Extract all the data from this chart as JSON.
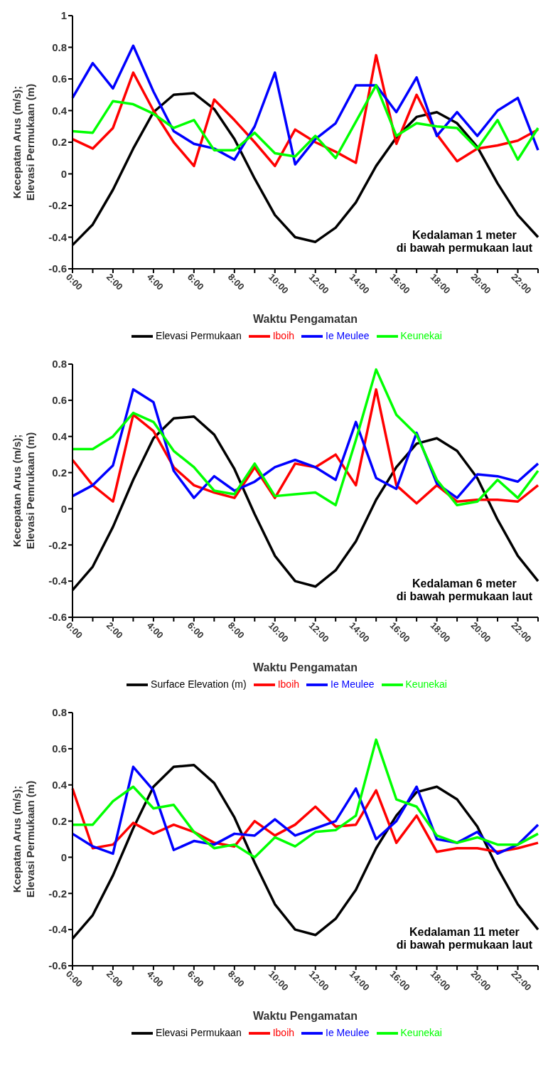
{
  "chart_data": [
    {
      "type": "line",
      "xlabel": "Waktu Pengamatan",
      "ylabel": "Kecepatan Arus (m/s);\nElevasi Permukaan (m)",
      "annotations": [
        "Kedalaman 1 meter\ndi bawah permukaan laut"
      ],
      "categories": [
        "0:00",
        null,
        "2:00",
        null,
        "4:00",
        null,
        "6:00",
        null,
        "8:00",
        null,
        "10:00",
        null,
        "12:00",
        null,
        "14:00",
        null,
        "16:00",
        null,
        "18:00",
        null,
        "20:00",
        null,
        "22:00",
        null
      ],
      "ylim": [
        -0.6,
        1
      ],
      "yticks": [
        -0.6,
        -0.4,
        -0.2,
        0,
        0.2,
        0.4,
        0.6,
        0.8,
        1
      ],
      "legend": "bottom",
      "marker": "none",
      "series": [
        {
          "name": "Elevasi Permukaan",
          "color": "#000000",
          "values": [
            -0.45,
            -0.32,
            -0.1,
            0.16,
            0.39,
            0.5,
            0.51,
            0.41,
            0.22,
            -0.03,
            -0.26,
            -0.4,
            -0.43,
            -0.34,
            -0.18,
            0.05,
            0.23,
            0.36,
            0.39,
            0.32,
            0.17,
            -0.06,
            -0.26,
            -0.4
          ]
        },
        {
          "name": "Iboih",
          "color": "#ff0000",
          "values": [
            0.22,
            0.16,
            0.29,
            0.64,
            0.4,
            0.2,
            0.05,
            0.47,
            0.34,
            0.2,
            0.05,
            0.28,
            0.2,
            0.14,
            0.07,
            0.75,
            0.19,
            0.5,
            0.25,
            0.08,
            0.16,
            0.18,
            0.21,
            0.28
          ]
        },
        {
          "name": "Ie Meulee",
          "color": "#0000ff",
          "values": [
            0.48,
            0.7,
            0.54,
            0.81,
            0.52,
            0.27,
            0.19,
            0.16,
            0.09,
            0.3,
            0.64,
            0.06,
            0.22,
            0.32,
            0.56,
            0.56,
            0.39,
            0.61,
            0.24,
            0.39,
            0.24,
            0.4,
            0.48,
            0.15
          ]
        },
        {
          "name": "Keunekai",
          "color": "#00ff00",
          "values": [
            0.27,
            0.26,
            0.46,
            0.44,
            0.38,
            0.29,
            0.34,
            0.15,
            0.15,
            0.26,
            0.13,
            0.11,
            0.24,
            0.1,
            0.33,
            0.56,
            0.24,
            0.32,
            0.3,
            0.29,
            0.16,
            0.34,
            0.09,
            0.29
          ]
        }
      ]
    },
    {
      "type": "line",
      "xlabel": "Waktu Pengamatan",
      "ylabel": "Kecepatan Arus (m/s);\nElevasi Pemrukaan (m)",
      "annotations": [
        "Kedalaman 6 meter\ndi bawah permukaan laut"
      ],
      "categories": [
        "0:00",
        null,
        "2:00",
        null,
        "4:00",
        null,
        "6:00",
        null,
        "8:00",
        null,
        "10:00",
        null,
        "12:00",
        null,
        "14:00",
        null,
        "16:00",
        null,
        "18:00",
        null,
        "20:00",
        null,
        "22:00",
        null
      ],
      "ylim": [
        -0.6,
        0.8
      ],
      "yticks": [
        -0.6,
        -0.4,
        -0.2,
        0,
        0.2,
        0.4,
        0.6,
        0.8
      ],
      "legend": "bottom",
      "marker": "none",
      "series": [
        {
          "name": "Surface Elevation (m)",
          "color": "#000000",
          "values": [
            -0.45,
            -0.32,
            -0.1,
            0.16,
            0.39,
            0.5,
            0.51,
            0.41,
            0.22,
            -0.03,
            -0.26,
            -0.4,
            -0.43,
            -0.34,
            -0.18,
            0.05,
            0.23,
            0.36,
            0.39,
            0.32,
            0.17,
            -0.06,
            -0.26,
            -0.4
          ]
        },
        {
          "name": "Iboih",
          "color": "#ff0000",
          "values": [
            0.27,
            0.13,
            0.04,
            0.52,
            0.43,
            0.23,
            0.13,
            0.09,
            0.06,
            0.23,
            0.06,
            0.25,
            0.23,
            0.3,
            0.13,
            0.66,
            0.13,
            0.03,
            0.13,
            0.04,
            0.05,
            0.05,
            0.04,
            0.13
          ]
        },
        {
          "name": "Ie Meulee",
          "color": "#0000ff",
          "values": [
            0.07,
            0.13,
            0.24,
            0.66,
            0.59,
            0.21,
            0.06,
            0.18,
            0.1,
            0.15,
            0.23,
            0.27,
            0.23,
            0.16,
            0.48,
            0.17,
            0.11,
            0.42,
            0.14,
            0.06,
            0.19,
            0.18,
            0.15,
            0.25
          ]
        },
        {
          "name": "Keunekai",
          "color": "#00ff00",
          "values": [
            0.33,
            0.33,
            0.4,
            0.53,
            0.48,
            0.32,
            0.23,
            0.1,
            0.08,
            0.25,
            0.07,
            0.08,
            0.09,
            0.02,
            0.38,
            0.77,
            0.52,
            0.41,
            0.16,
            0.02,
            0.04,
            0.16,
            0.06,
            0.21
          ]
        }
      ]
    },
    {
      "type": "line",
      "xlabel": "Waktu Pengamatan",
      "ylabel": "Kcepatan Arus (m/s);\nElevasi Permukaan (m)",
      "annotations": [
        "Kedalaman 11 meter\ndi bawah permukaan laut"
      ],
      "categories": [
        "0:00",
        null,
        "2:00",
        null,
        "4:00",
        null,
        "6:00",
        null,
        "8:00",
        null,
        "10:00",
        null,
        "12:00",
        null,
        "14:00",
        null,
        "16:00",
        null,
        "18:00",
        null,
        "20:00",
        null,
        "22:00",
        null
      ],
      "ylim": [
        -0.6,
        0.8
      ],
      "yticks": [
        -0.6,
        -0.4,
        -0.2,
        0,
        0.2,
        0.4,
        0.6,
        0.8
      ],
      "legend": "bottom",
      "marker": "none",
      "series": [
        {
          "name": "Elevasi Permukaan",
          "color": "#000000",
          "values": [
            -0.45,
            -0.32,
            -0.1,
            0.16,
            0.39,
            0.5,
            0.51,
            0.41,
            0.22,
            -0.03,
            -0.26,
            -0.4,
            -0.43,
            -0.34,
            -0.18,
            0.05,
            0.23,
            0.36,
            0.39,
            0.32,
            0.17,
            -0.06,
            -0.26,
            -0.4
          ]
        },
        {
          "name": "Iboih",
          "color": "#ff0000",
          "values": [
            0.38,
            0.05,
            0.07,
            0.19,
            0.13,
            0.18,
            0.14,
            0.08,
            0.06,
            0.2,
            0.12,
            0.18,
            0.28,
            0.17,
            0.18,
            0.37,
            0.08,
            0.23,
            0.03,
            0.05,
            0.05,
            0.03,
            0.05,
            0.08
          ]
        },
        {
          "name": "Ie Meulee",
          "color": "#0000ff",
          "values": [
            0.13,
            0.06,
            0.02,
            0.5,
            0.37,
            0.04,
            0.09,
            0.07,
            0.13,
            0.12,
            0.21,
            0.12,
            0.16,
            0.2,
            0.38,
            0.1,
            0.2,
            0.39,
            0.1,
            0.08,
            0.14,
            0.02,
            0.07,
            0.18
          ]
        },
        {
          "name": "Keunekai",
          "color": "#00ff00",
          "values": [
            0.18,
            0.18,
            0.31,
            0.39,
            0.27,
            0.29,
            0.14,
            0.05,
            0.07,
            0,
            0.11,
            0.06,
            0.14,
            0.15,
            0.23,
            0.65,
            0.32,
            0.28,
            0.12,
            0.08,
            0.11,
            0.07,
            0.07,
            0.13
          ]
        }
      ]
    }
  ]
}
